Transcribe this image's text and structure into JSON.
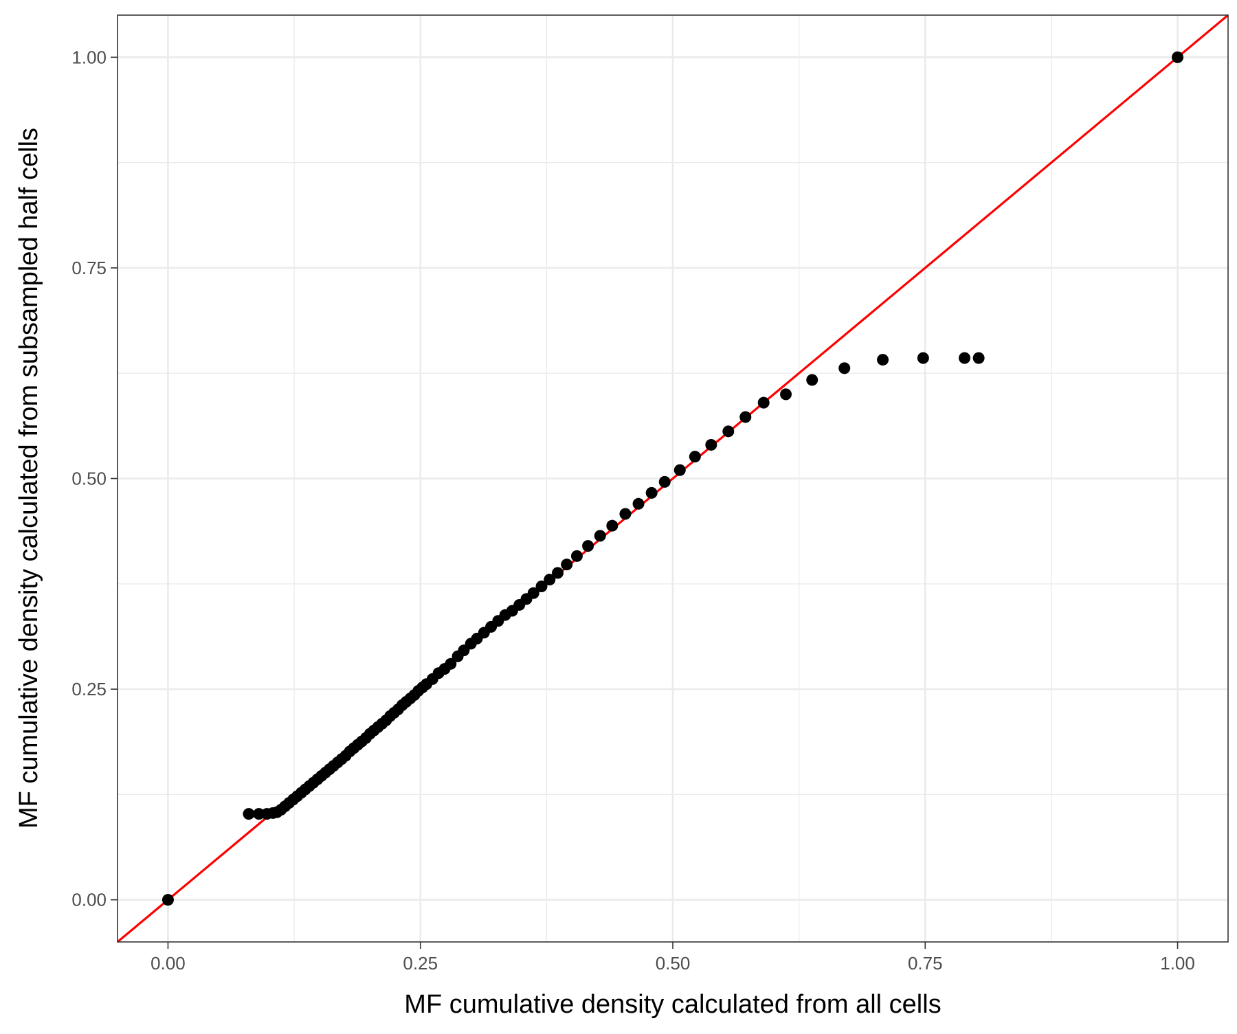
{
  "chart_data": {
    "type": "scatter",
    "title": "",
    "xlabel": "MF cumulative density calculated from all cells",
    "ylabel": "MF cumulative density calculated from subsampled half cells",
    "xlim": [
      -0.05,
      1.05
    ],
    "ylim": [
      -0.05,
      1.05
    ],
    "x_ticks": [
      0.0,
      0.25,
      0.5,
      0.75,
      1.0
    ],
    "y_ticks": [
      0.0,
      0.25,
      0.5,
      0.75,
      1.0
    ],
    "x_tick_labels": [
      "0.00",
      "0.25",
      "0.50",
      "0.75",
      "1.00"
    ],
    "y_tick_labels": [
      "0.00",
      "0.25",
      "0.50",
      "0.75",
      "1.00"
    ],
    "grid": true,
    "reference_line": {
      "slope": 1,
      "intercept": 0,
      "color": "#ff0000"
    },
    "point_color": "#000000",
    "points": [
      [
        0.0,
        0.0
      ],
      [
        0.08,
        0.102
      ],
      [
        0.09,
        0.102
      ],
      [
        0.098,
        0.102
      ],
      [
        0.104,
        0.103
      ],
      [
        0.108,
        0.104
      ],
      [
        0.112,
        0.107
      ],
      [
        0.116,
        0.111
      ],
      [
        0.12,
        0.115
      ],
      [
        0.124,
        0.119
      ],
      [
        0.128,
        0.123
      ],
      [
        0.132,
        0.127
      ],
      [
        0.136,
        0.131
      ],
      [
        0.14,
        0.135
      ],
      [
        0.144,
        0.139
      ],
      [
        0.148,
        0.143
      ],
      [
        0.152,
        0.147
      ],
      [
        0.156,
        0.151
      ],
      [
        0.16,
        0.155
      ],
      [
        0.164,
        0.159
      ],
      [
        0.168,
        0.163
      ],
      [
        0.172,
        0.167
      ],
      [
        0.176,
        0.171
      ],
      [
        0.18,
        0.176
      ],
      [
        0.184,
        0.18
      ],
      [
        0.188,
        0.184
      ],
      [
        0.192,
        0.188
      ],
      [
        0.196,
        0.192
      ],
      [
        0.2,
        0.197
      ],
      [
        0.204,
        0.201
      ],
      [
        0.208,
        0.205
      ],
      [
        0.212,
        0.209
      ],
      [
        0.216,
        0.213
      ],
      [
        0.22,
        0.218
      ],
      [
        0.224,
        0.222
      ],
      [
        0.228,
        0.226
      ],
      [
        0.232,
        0.231
      ],
      [
        0.236,
        0.235
      ],
      [
        0.24,
        0.239
      ],
      [
        0.244,
        0.243
      ],
      [
        0.248,
        0.248
      ],
      [
        0.252,
        0.252
      ],
      [
        0.256,
        0.256
      ],
      [
        0.262,
        0.262
      ],
      [
        0.268,
        0.269
      ],
      [
        0.274,
        0.274
      ],
      [
        0.28,
        0.28
      ],
      [
        0.287,
        0.289
      ],
      [
        0.293,
        0.296
      ],
      [
        0.3,
        0.304
      ],
      [
        0.306,
        0.31
      ],
      [
        0.313,
        0.317
      ],
      [
        0.32,
        0.324
      ],
      [
        0.327,
        0.331
      ],
      [
        0.334,
        0.338
      ],
      [
        0.341,
        0.343
      ],
      [
        0.348,
        0.35
      ],
      [
        0.355,
        0.357
      ],
      [
        0.362,
        0.364
      ],
      [
        0.37,
        0.372
      ],
      [
        0.378,
        0.38
      ],
      [
        0.386,
        0.388
      ],
      [
        0.395,
        0.398
      ],
      [
        0.405,
        0.408
      ],
      [
        0.416,
        0.42
      ],
      [
        0.428,
        0.432
      ],
      [
        0.44,
        0.444
      ],
      [
        0.453,
        0.458
      ],
      [
        0.466,
        0.47
      ],
      [
        0.479,
        0.483
      ],
      [
        0.492,
        0.496
      ],
      [
        0.507,
        0.51
      ],
      [
        0.522,
        0.526
      ],
      [
        0.538,
        0.54
      ],
      [
        0.555,
        0.556
      ],
      [
        0.572,
        0.573
      ],
      [
        0.59,
        0.59
      ],
      [
        0.612,
        0.6
      ],
      [
        0.638,
        0.617
      ],
      [
        0.67,
        0.631
      ],
      [
        0.708,
        0.641
      ],
      [
        0.748,
        0.643
      ],
      [
        0.789,
        0.643
      ],
      [
        0.803,
        0.643
      ],
      [
        1.0,
        1.0
      ]
    ]
  }
}
